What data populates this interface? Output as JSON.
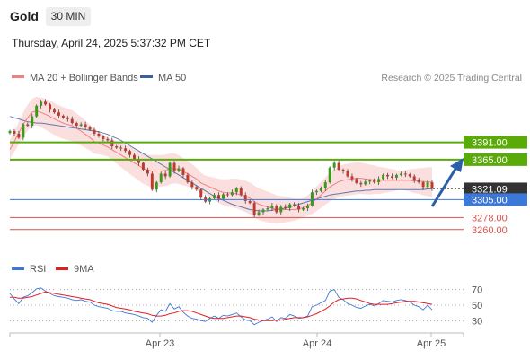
{
  "header": {
    "title": "Gold",
    "timeframe": "30 MIN",
    "datetime": "Thursday, April 24, 2025 5:37:32 PM CET"
  },
  "legend": {
    "ma20": "MA 20 + Bollinger Bands",
    "ma50": "MA 50",
    "credit": "Research © 2025 Trading Central"
  },
  "rsi_legend": {
    "rsi": "RSI",
    "ma": "9MA"
  },
  "x_labels": [
    "Apr 23",
    "Apr 24",
    "Apr 25"
  ],
  "colors": {
    "green": "#5aaa0a",
    "blue": "#3c78d8",
    "red": "#d9534f",
    "ma20": "#f08080",
    "ma50": "#3b5f9a",
    "band": "#f9d4d4"
  },
  "chart_data": [
    {
      "type": "candlestick",
      "title": "Gold 30 MIN",
      "ylim": [
        3230,
        3470
      ],
      "levels": [
        {
          "value": 3391.0,
          "label": "3391.00",
          "style": "resistance"
        },
        {
          "value": 3365.0,
          "label": "3365.00",
          "style": "resistance"
        },
        {
          "value": 3321.09,
          "label": "3321.09",
          "style": "last_price"
        },
        {
          "value": 3305.0,
          "label": "3305.00",
          "style": "pivot"
        },
        {
          "value": 3278.0,
          "label": "3278.00",
          "style": "support"
        },
        {
          "value": 3260.0,
          "label": "3260.00",
          "style": "support"
        }
      ],
      "x_ticks": [
        "Apr 23",
        "Apr 24",
        "Apr 25"
      ],
      "close": [
        3408,
        3404,
        3398,
        3418,
        3416,
        3430,
        3446,
        3452,
        3448,
        3440,
        3436,
        3431,
        3428,
        3426,
        3420,
        3416,
        3418,
        3414,
        3410,
        3404,
        3400,
        3396,
        3394,
        3385,
        3383,
        3382,
        3378,
        3372,
        3366,
        3360,
        3350,
        3344,
        3320,
        3331,
        3344,
        3340,
        3360,
        3348,
        3352,
        3342,
        3331,
        3324,
        3320,
        3308,
        3302,
        3307,
        3312,
        3306,
        3313,
        3312,
        3316,
        3322,
        3312,
        3303,
        3300,
        3282,
        3286,
        3290,
        3292,
        3296,
        3286,
        3294,
        3292,
        3298,
        3296,
        3290,
        3292,
        3296,
        3316,
        3318,
        3322,
        3331,
        3353,
        3360,
        3350,
        3348,
        3340,
        3336,
        3330,
        3328,
        3332,
        3334,
        3331,
        3336,
        3342,
        3340,
        3338,
        3342,
        3344,
        3343,
        3340,
        3334,
        3331,
        3324,
        3331,
        3322
      ],
      "ma20": [
        3380,
        3392,
        3405,
        3418,
        3428,
        3436,
        3438,
        3436,
        3433,
        3430,
        3426,
        3423,
        3420,
        3418,
        3416,
        3412,
        3408,
        3403,
        3398,
        3392,
        3390,
        3387,
        3384,
        3380,
        3376,
        3372,
        3368,
        3364,
        3360,
        3356,
        3352,
        3349,
        3348,
        3348,
        3348,
        3349,
        3351,
        3352,
        3350,
        3347,
        3344,
        3340,
        3336,
        3330,
        3327,
        3324,
        3321,
        3318,
        3316,
        3315,
        3315,
        3314,
        3312,
        3310,
        3307,
        3302,
        3298,
        3296,
        3294,
        3292,
        3290,
        3290,
        3290,
        3290,
        3290,
        3291,
        3293,
        3296,
        3300,
        3306,
        3312,
        3318,
        3324,
        3328,
        3332,
        3334,
        3335,
        3336,
        3337,
        3337,
        3336,
        3335,
        3335,
        3334,
        3334,
        3334,
        3334,
        3334,
        3334,
        3334,
        3334,
        3333,
        3333,
        3332,
        3332,
        3331
      ],
      "ma50": [
        3430,
        3428,
        3426,
        3424,
        3422,
        3421,
        3420,
        3420,
        3419,
        3418,
        3417,
        3416,
        3415,
        3414,
        3413,
        3412,
        3411,
        3410,
        3409,
        3408,
        3407,
        3405,
        3403,
        3400,
        3397,
        3394,
        3390,
        3386,
        3382,
        3378,
        3374,
        3370,
        3366,
        3362,
        3358,
        3354,
        3350,
        3346,
        3342,
        3338,
        3334,
        3330,
        3326,
        3322,
        3318,
        3314,
        3310,
        3307,
        3304,
        3301,
        3298,
        3296,
        3294,
        3292,
        3290,
        3289,
        3288,
        3288,
        3288,
        3289,
        3290,
        3291,
        3292,
        3294,
        3296,
        3298,
        3300,
        3302,
        3304,
        3306,
        3308,
        3310,
        3312,
        3313,
        3314,
        3315,
        3316,
        3317,
        3318,
        3318,
        3319,
        3319,
        3320,
        3320,
        3320,
        3320,
        3320,
        3320,
        3320,
        3320,
        3320,
        3320,
        3320,
        3320,
        3321,
        3321
      ]
    },
    {
      "type": "line",
      "title": "RSI",
      "ylim": [
        20,
        80
      ],
      "y_ticks": [
        30,
        50,
        70
      ],
      "series": [
        {
          "name": "RSI",
          "values": [
            65,
            58,
            52,
            60,
            62,
            66,
            71,
            72,
            68,
            65,
            62,
            61,
            60,
            59,
            57,
            56,
            57,
            55,
            54,
            50,
            48,
            47,
            46,
            43,
            42,
            42,
            40,
            39,
            38,
            36,
            34,
            33,
            28,
            37,
            44,
            42,
            52,
            45,
            48,
            41,
            36,
            33,
            32,
            30,
            29,
            33,
            36,
            33,
            37,
            36,
            38,
            40,
            35,
            31,
            30,
            25,
            28,
            30,
            32,
            35,
            29,
            34,
            33,
            38,
            36,
            33,
            34,
            36,
            48,
            50,
            53,
            56,
            68,
            70,
            60,
            57,
            52,
            50,
            47,
            46,
            49,
            51,
            49,
            52,
            56,
            55,
            54,
            56,
            57,
            56,
            54,
            50,
            48,
            44,
            50,
            44
          ]
        },
        {
          "name": "9MA",
          "values": [
            60,
            60,
            59,
            59,
            60,
            61,
            63,
            65,
            67,
            66,
            65,
            64,
            63,
            62,
            61,
            60,
            59,
            58,
            57,
            55,
            53,
            52,
            51,
            49,
            47,
            46,
            45,
            44,
            42,
            41,
            40,
            39,
            37,
            36,
            36,
            37,
            39,
            40,
            42,
            43,
            43,
            42,
            40,
            38,
            36,
            34,
            33,
            33,
            33,
            34,
            35,
            36,
            36,
            35,
            34,
            32,
            31,
            30,
            30,
            30,
            31,
            31,
            32,
            33,
            34,
            34,
            34,
            35,
            37,
            39,
            42,
            45,
            49,
            54,
            57,
            58,
            59,
            59,
            58,
            56,
            54,
            52,
            51,
            51,
            51,
            51,
            52,
            53,
            54,
            55,
            55,
            55,
            54,
            53,
            52,
            51
          ]
        }
      ]
    }
  ]
}
